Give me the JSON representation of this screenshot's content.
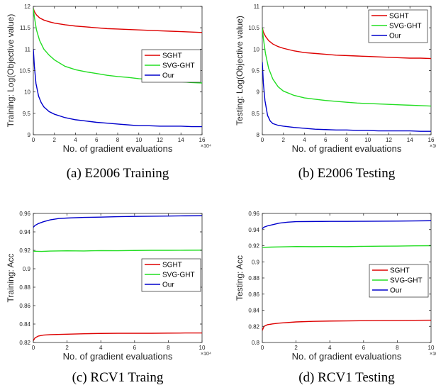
{
  "chart_data": [
    {
      "type": "line",
      "caption": "(a)  E2006 Training",
      "xlabel": "No. of gradient evaluations",
      "ylabel": "Training: Log(Objective value)",
      "x_exponent": "×10⁴",
      "xlim": [
        0,
        16
      ],
      "ylim": [
        9,
        12
      ],
      "xticks": [
        0,
        2,
        4,
        6,
        8,
        10,
        12,
        14,
        16
      ],
      "yticks": [
        9,
        9.5,
        10,
        10.5,
        11,
        11.5,
        12
      ],
      "ytick_labels": [
        "9",
        "9.5",
        "10",
        "10.5",
        "11",
        "11.5",
        "12"
      ],
      "legend": "right",
      "series": [
        {
          "name": "SGHT",
          "color": "#dd0000",
          "points": [
            [
              0,
              11.95
            ],
            [
              0.1,
              11.88
            ],
            [
              0.3,
              11.8
            ],
            [
              0.6,
              11.73
            ],
            [
              1,
              11.68
            ],
            [
              1.5,
              11.64
            ],
            [
              2,
              11.61
            ],
            [
              3,
              11.57
            ],
            [
              4,
              11.54
            ],
            [
              5,
              11.52
            ],
            [
              6,
              11.5
            ],
            [
              7,
              11.48
            ],
            [
              8,
              11.47
            ],
            [
              9,
              11.46
            ],
            [
              10,
              11.45
            ],
            [
              11,
              11.44
            ],
            [
              12,
              11.43
            ],
            [
              13,
              11.42
            ],
            [
              14,
              11.41
            ],
            [
              15,
              11.4
            ],
            [
              16,
              11.39
            ]
          ]
        },
        {
          "name": "SVG-GHT",
          "color": "#22dd22",
          "points": [
            [
              0,
              11.95
            ],
            [
              0.1,
              11.75
            ],
            [
              0.3,
              11.45
            ],
            [
              0.6,
              11.2
            ],
            [
              1,
              11.0
            ],
            [
              1.5,
              10.86
            ],
            [
              2,
              10.75
            ],
            [
              3,
              10.6
            ],
            [
              4,
              10.52
            ],
            [
              5,
              10.47
            ],
            [
              6,
              10.43
            ],
            [
              7,
              10.39
            ],
            [
              8,
              10.36
            ],
            [
              9,
              10.34
            ],
            [
              10,
              10.31
            ],
            [
              11,
              10.29
            ],
            [
              12,
              10.27
            ],
            [
              13,
              10.26
            ],
            [
              14,
              10.24
            ],
            [
              15,
              10.22
            ],
            [
              16,
              10.21
            ]
          ]
        },
        {
          "name": "Our",
          "color": "#0000cc",
          "points": [
            [
              0,
              11.0
            ],
            [
              0.1,
              10.6
            ],
            [
              0.25,
              10.2
            ],
            [
              0.5,
              9.9
            ],
            [
              0.75,
              9.75
            ],
            [
              1,
              9.65
            ],
            [
              1.5,
              9.54
            ],
            [
              2,
              9.48
            ],
            [
              3,
              9.4
            ],
            [
              4,
              9.35
            ],
            [
              5,
              9.32
            ],
            [
              6,
              9.29
            ],
            [
              7,
              9.27
            ],
            [
              8,
              9.25
            ],
            [
              9,
              9.23
            ],
            [
              10,
              9.21
            ],
            [
              11,
              9.21
            ],
            [
              12,
              9.2
            ],
            [
              13,
              9.2
            ],
            [
              14,
              9.2
            ],
            [
              15,
              9.19
            ],
            [
              16,
              9.19
            ]
          ]
        }
      ]
    },
    {
      "type": "line",
      "caption": "(b)  E2006 Testing",
      "xlabel": "No. of gradient evaluations",
      "ylabel": "Testing: Log(Objective value)",
      "x_exponent": "×10⁴",
      "xlim": [
        0,
        16
      ],
      "ylim": [
        8,
        11
      ],
      "xticks": [
        0,
        2,
        4,
        6,
        8,
        10,
        12,
        14,
        16
      ],
      "yticks": [
        8,
        8.5,
        9,
        9.5,
        10,
        10.5,
        11
      ],
      "ytick_labels": [
        "8",
        "8.5",
        "9",
        "9.5",
        "10",
        "10.5",
        "11"
      ],
      "legend": "top-right",
      "series": [
        {
          "name": "SGHT",
          "color": "#dd0000",
          "points": [
            [
              0,
              10.5
            ],
            [
              0.1,
              10.4
            ],
            [
              0.3,
              10.3
            ],
            [
              0.6,
              10.2
            ],
            [
              1,
              10.12
            ],
            [
              1.5,
              10.06
            ],
            [
              2,
              10.02
            ],
            [
              3,
              9.96
            ],
            [
              4,
              9.92
            ],
            [
              5,
              9.9
            ],
            [
              6,
              9.88
            ],
            [
              7,
              9.86
            ],
            [
              8,
              9.85
            ],
            [
              9,
              9.84
            ],
            [
              10,
              9.83
            ],
            [
              11,
              9.82
            ],
            [
              12,
              9.81
            ],
            [
              13,
              9.8
            ],
            [
              14,
              9.79
            ],
            [
              15,
              9.79
            ],
            [
              16,
              9.78
            ]
          ]
        },
        {
          "name": "SVG-GHT",
          "color": "#22dd22",
          "points": [
            [
              0,
              10.5
            ],
            [
              0.1,
              10.25
            ],
            [
              0.3,
              9.9
            ],
            [
              0.6,
              9.55
            ],
            [
              1,
              9.3
            ],
            [
              1.5,
              9.12
            ],
            [
              2,
              9.02
            ],
            [
              3,
              8.92
            ],
            [
              4,
              8.86
            ],
            [
              5,
              8.83
            ],
            [
              6,
              8.8
            ],
            [
              7,
              8.78
            ],
            [
              8,
              8.76
            ],
            [
              9,
              8.74
            ],
            [
              10,
              8.73
            ],
            [
              11,
              8.72
            ],
            [
              12,
              8.71
            ],
            [
              13,
              8.7
            ],
            [
              14,
              8.69
            ],
            [
              15,
              8.68
            ],
            [
              16,
              8.67
            ]
          ]
        },
        {
          "name": "Our",
          "color": "#0000cc",
          "points": [
            [
              0,
              9.7
            ],
            [
              0.1,
              9.2
            ],
            [
              0.25,
              8.8
            ],
            [
              0.5,
              8.45
            ],
            [
              0.75,
              8.32
            ],
            [
              1,
              8.26
            ],
            [
              1.5,
              8.22
            ],
            [
              2,
              8.2
            ],
            [
              3,
              8.17
            ],
            [
              4,
              8.15
            ],
            [
              5,
              8.13
            ],
            [
              6,
              8.12
            ],
            [
              7,
              8.11
            ],
            [
              8,
              8.11
            ],
            [
              9,
              8.1
            ],
            [
              10,
              8.1
            ],
            [
              11,
              8.09
            ],
            [
              12,
              8.09
            ],
            [
              13,
              8.09
            ],
            [
              14,
              8.09
            ],
            [
              15,
              8.08
            ],
            [
              16,
              8.08
            ]
          ]
        }
      ]
    },
    {
      "type": "line",
      "caption": "(c)  RCV1 Traing",
      "xlabel": "No. of gradient evaluations",
      "ylabel": "Training: Acc",
      "x_exponent": "×10⁴",
      "xlim": [
        0,
        10
      ],
      "ylim": [
        0.82,
        0.96
      ],
      "xticks": [
        0,
        2,
        4,
        6,
        8,
        10
      ],
      "yticks": [
        0.82,
        0.84,
        0.86,
        0.88,
        0.9,
        0.92,
        0.94,
        0.96
      ],
      "ytick_labels": [
        "0.82",
        "0.84",
        "0.86",
        "0.88",
        "0.9",
        "0.92",
        "0.94",
        "0.96"
      ],
      "legend": "right",
      "series": [
        {
          "name": "SGHT",
          "color": "#dd0000",
          "points": [
            [
              0,
              0.822
            ],
            [
              0.1,
              0.825
            ],
            [
              0.3,
              0.827
            ],
            [
              0.6,
              0.828
            ],
            [
              1,
              0.8285
            ],
            [
              2,
              0.829
            ],
            [
              3,
              0.8295
            ],
            [
              4,
              0.8298
            ],
            [
              5,
              0.83
            ],
            [
              6,
              0.83
            ],
            [
              7,
              0.83
            ],
            [
              8,
              0.8302
            ],
            [
              9,
              0.8303
            ],
            [
              10,
              0.8303
            ]
          ]
        },
        {
          "name": "SVG-GHT",
          "color": "#22dd22",
          "points": [
            [
              0,
              0.919
            ],
            [
              0.5,
              0.9188
            ],
            [
              1,
              0.9192
            ],
            [
              2,
              0.9195
            ],
            [
              3,
              0.9193
            ],
            [
              4,
              0.9197
            ],
            [
              5,
              0.9196
            ],
            [
              6,
              0.9198
            ],
            [
              7,
              0.92
            ],
            [
              8,
              0.92
            ],
            [
              9,
              0.9201
            ],
            [
              10,
              0.9202
            ]
          ]
        },
        {
          "name": "Our",
          "color": "#0000cc",
          "points": [
            [
              0,
              0.945
            ],
            [
              0.1,
              0.947
            ],
            [
              0.3,
              0.949
            ],
            [
              0.6,
              0.951
            ],
            [
              1,
              0.953
            ],
            [
              1.5,
              0.9545
            ],
            [
              2,
              0.955
            ],
            [
              3,
              0.9557
            ],
            [
              4,
              0.956
            ],
            [
              5,
              0.9565
            ],
            [
              6,
              0.9568
            ],
            [
              7,
              0.957
            ],
            [
              8,
              0.9572
            ],
            [
              9,
              0.9574
            ],
            [
              10,
              0.9575
            ]
          ]
        }
      ]
    },
    {
      "type": "line",
      "caption": "(d)  RCV1 Testing",
      "xlabel": "No. of gradient evaluations",
      "ylabel": "Testing: Acc",
      "x_exponent": "×10⁴",
      "xlim": [
        0,
        10
      ],
      "ylim": [
        0.8,
        0.96
      ],
      "xticks": [
        0,
        2,
        4,
        6,
        8,
        10
      ],
      "yticks": [
        0.8,
        0.82,
        0.84,
        0.86,
        0.88,
        0.9,
        0.92,
        0.94,
        0.96
      ],
      "ytick_labels": [
        "0.8",
        "0.82",
        "0.84",
        "0.86",
        "0.88",
        "0.9",
        "0.92",
        "0.94",
        "0.96"
      ],
      "legend": "right",
      "series": [
        {
          "name": "SGHT",
          "color": "#dd0000",
          "points": [
            [
              0,
              0.815
            ],
            [
              0.1,
              0.82
            ],
            [
              0.3,
              0.822
            ],
            [
              0.6,
              0.823
            ],
            [
              1,
              0.824
            ],
            [
              2,
              0.8255
            ],
            [
              3,
              0.8262
            ],
            [
              4,
              0.8266
            ],
            [
              5,
              0.8268
            ],
            [
              6,
              0.827
            ],
            [
              7,
              0.8272
            ],
            [
              8,
              0.8273
            ],
            [
              9,
              0.8275
            ],
            [
              10,
              0.8276
            ]
          ]
        },
        {
          "name": "SVG-GHT",
          "color": "#22dd22",
          "points": [
            [
              0,
              0.918
            ],
            [
              1,
              0.9185
            ],
            [
              2,
              0.919
            ],
            [
              3,
              0.9188
            ],
            [
              4,
              0.919
            ],
            [
              5,
              0.9188
            ],
            [
              6,
              0.9192
            ],
            [
              7,
              0.9194
            ],
            [
              8,
              0.9195
            ],
            [
              9,
              0.9198
            ],
            [
              10,
              0.92
            ]
          ]
        },
        {
          "name": "Our",
          "color": "#0000cc",
          "points": [
            [
              0,
              0.941
            ],
            [
              0.1,
              0.943
            ],
            [
              0.3,
              0.9445
            ],
            [
              0.6,
              0.946
            ],
            [
              1,
              0.948
            ],
            [
              1.5,
              0.9492
            ],
            [
              2,
              0.9498
            ],
            [
              3,
              0.95
            ],
            [
              4,
              0.9502
            ],
            [
              5,
              0.9502
            ],
            [
              6,
              0.9503
            ],
            [
              7,
              0.9504
            ],
            [
              8,
              0.9505
            ],
            [
              9,
              0.9507
            ],
            [
              10,
              0.951
            ]
          ]
        }
      ]
    }
  ]
}
